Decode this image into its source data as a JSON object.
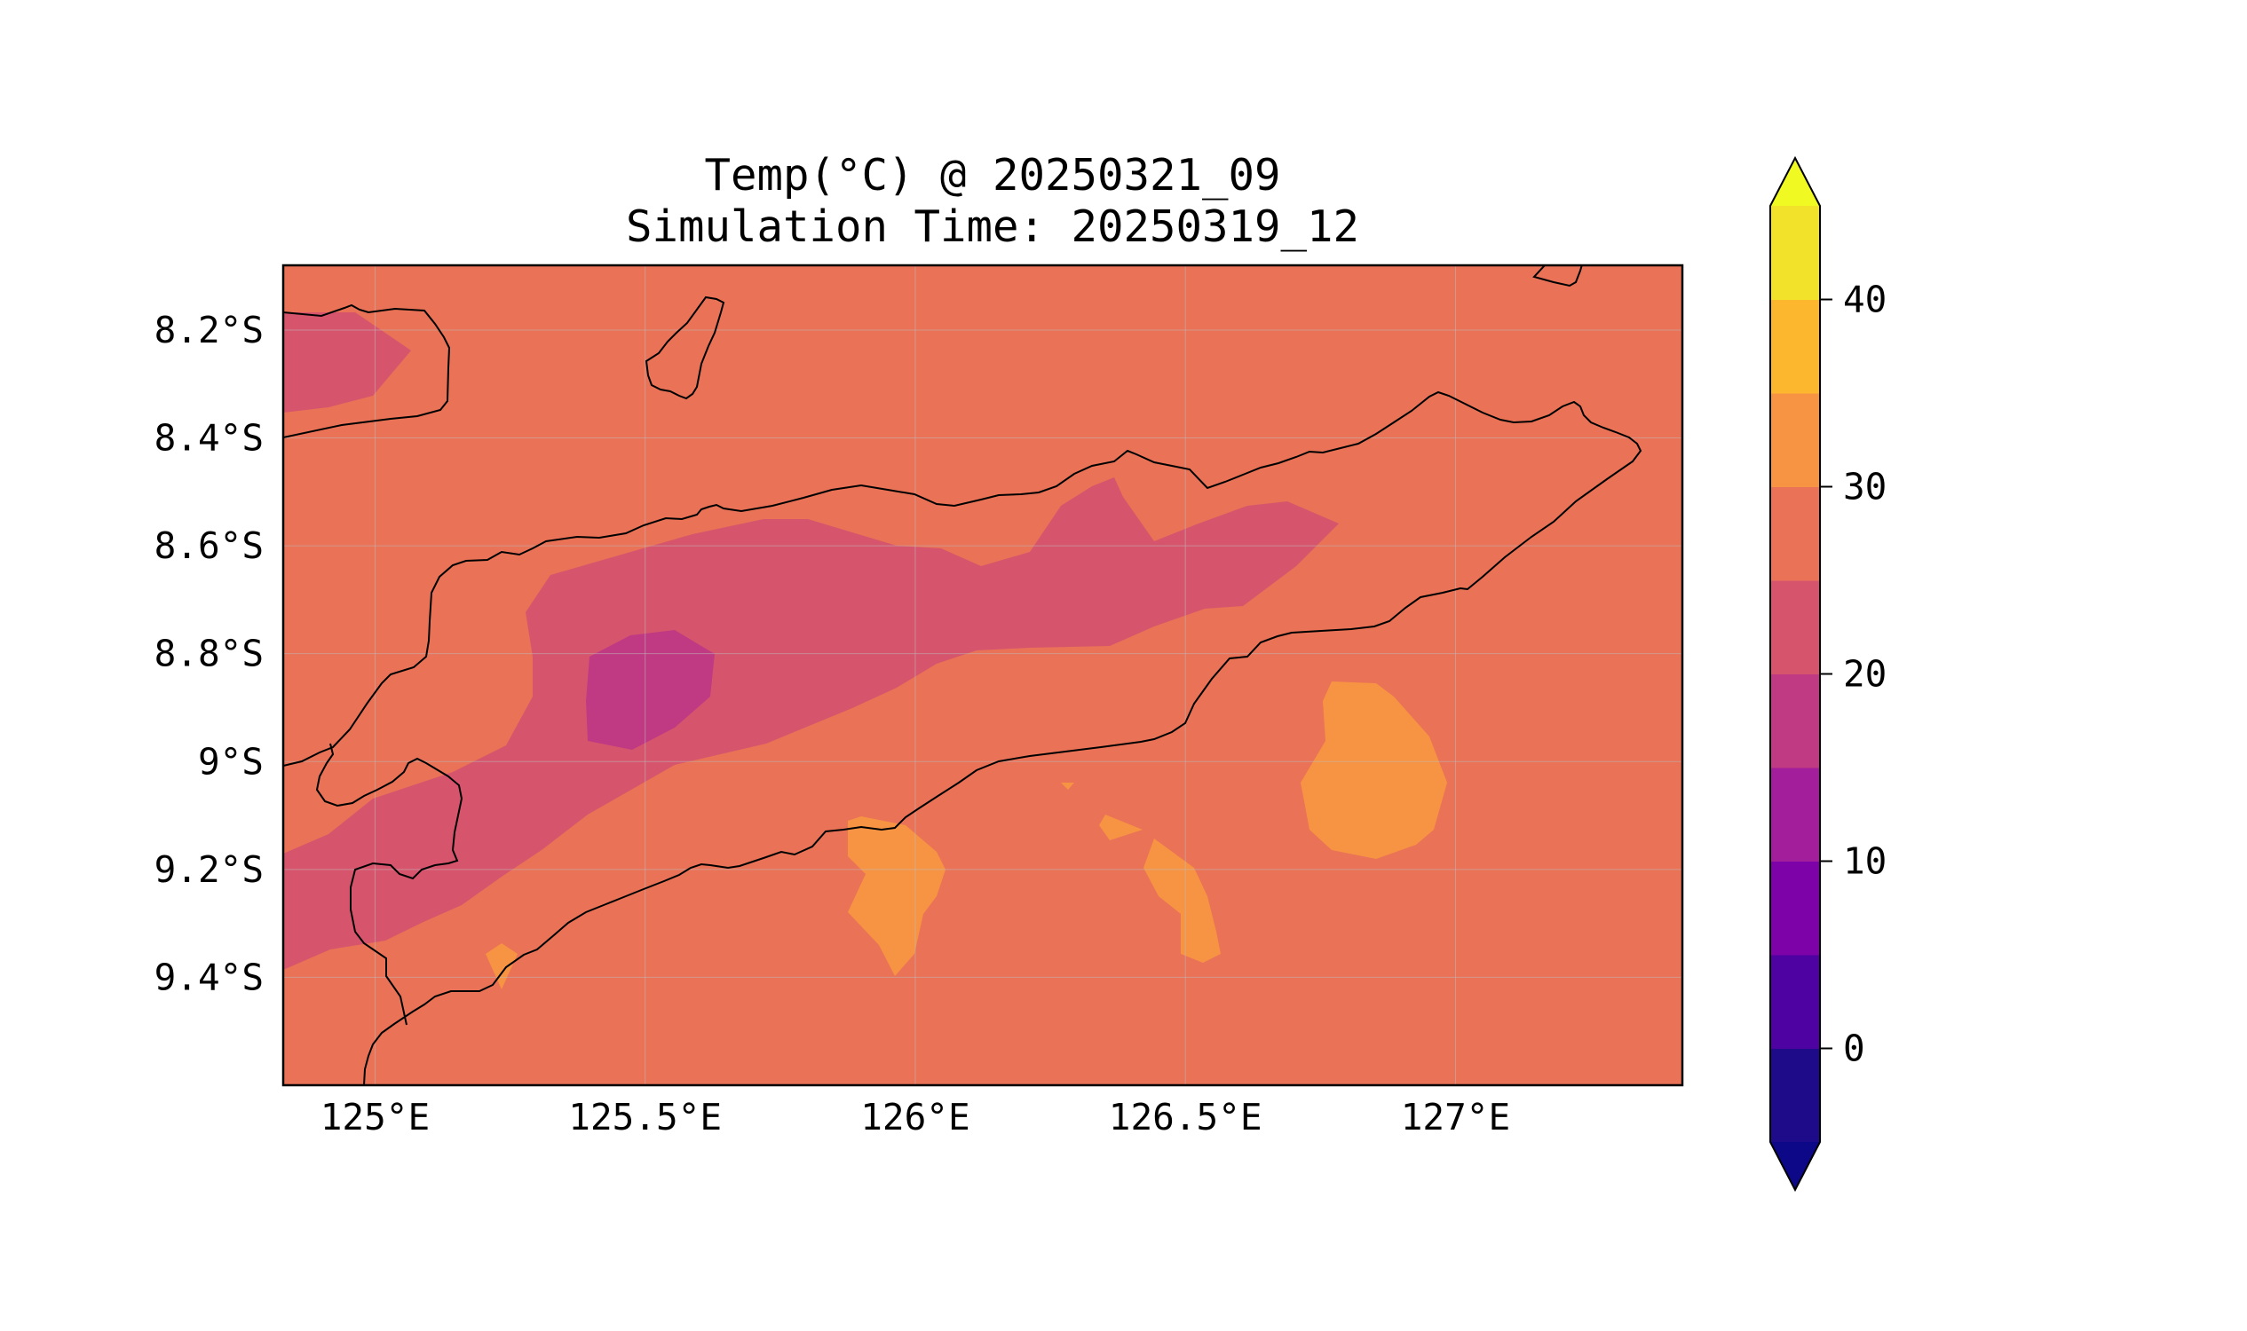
{
  "title": {
    "line1": "Temp(°C) @ 20250321_09",
    "line2": "Simulation Time: 20250319_12"
  },
  "map": {
    "x_ticks": [
      "125°E",
      "125.5°E",
      "126°E",
      "126.5°E",
      "127°E"
    ],
    "y_ticks": [
      "8.2°S",
      "8.4°S",
      "8.6°S",
      "8.8°S",
      "9°S",
      "9.2°S",
      "9.4°S"
    ],
    "lon_range": [
      124.83,
      127.42
    ],
    "lat_range": [
      -9.6,
      -8.08
    ],
    "gridlines": true,
    "coastlines": true
  },
  "colorbar": {
    "ticks": [
      "0",
      "10",
      "20",
      "30",
      "40"
    ],
    "levels": [
      -5,
      0,
      5,
      10,
      15,
      20,
      25,
      30,
      35,
      40,
      45
    ],
    "colors": [
      "#1d0b89",
      "#4e02a1",
      "#7d02a8",
      "#a21e9a",
      "#c03a83",
      "#d6556d",
      "#e97257",
      "#f79443",
      "#fdb72f",
      "#f2e22a"
    ],
    "under_color": "#0d0887",
    "over_color": "#f0f921",
    "extend": "both"
  },
  "colors": {
    "background": "#e97257",
    "band_20_25": "#d6556d",
    "band_15_20": "#c03a83",
    "band_30_35": "#f79443",
    "coastline": "#000000",
    "grid": "#bdbdbd"
  }
}
